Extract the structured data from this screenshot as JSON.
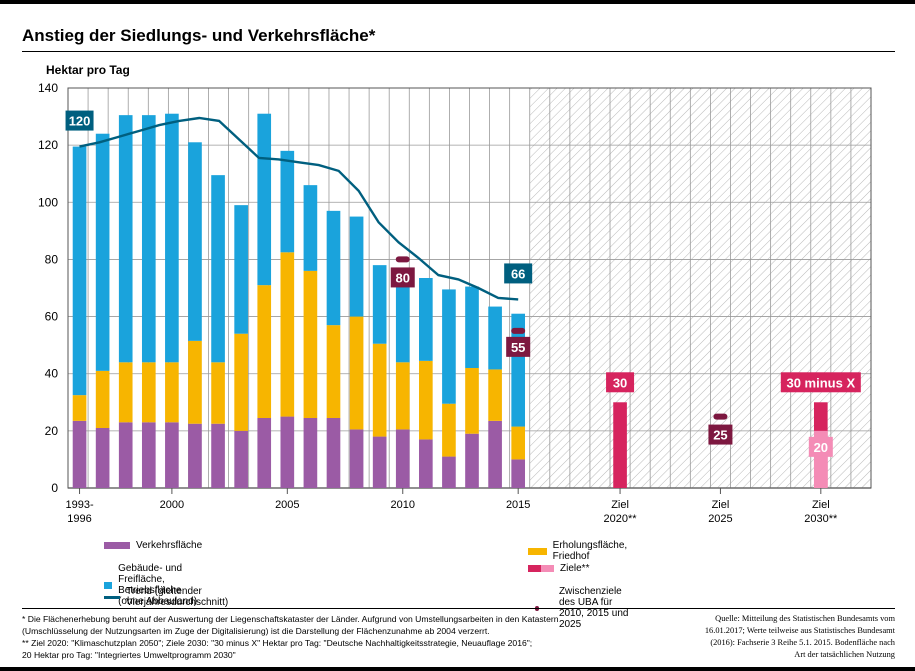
{
  "title": "Anstieg der Siedlungs- und Verkehrsfläche*",
  "colors": {
    "verkehr": "#9b5ba5",
    "erholung": "#f7b500",
    "gebaeude": "#1aa3dc",
    "trend": "#005f7f",
    "ziel_dark": "#d6245e",
    "ziel_light": "#f48cb6",
    "uba": "#7d1840"
  },
  "chart_data": {
    "type": "bar",
    "title": "Anstieg der Siedlungs- und Verkehrsfläche*",
    "ylabel": "Hektar pro Tag",
    "xlabel": "",
    "ylim": [
      0,
      140
    ],
    "yticks": [
      0,
      20,
      40,
      60,
      80,
      100,
      120,
      140
    ],
    "grid": true,
    "stacked": true,
    "years": [
      1993,
      1994,
      1995,
      1996,
      1997,
      1998,
      1999,
      2000,
      2001,
      2002,
      2003,
      2004,
      2005,
      2006,
      2007,
      2008,
      2009,
      2010,
      2011,
      2012,
      2013,
      2014,
      2015
    ],
    "x_tick_labels": [
      {
        "year": 1993,
        "line1": "1993-",
        "line2": "1996"
      },
      {
        "year": 2000,
        "line1": "2000",
        "line2": ""
      },
      {
        "year": 2005,
        "line1": "2005",
        "line2": ""
      },
      {
        "year": 2010,
        "line1": "2010",
        "line2": ""
      },
      {
        "year": 2015,
        "line1": "2015",
        "line2": ""
      },
      {
        "year": 2020,
        "line1": "Ziel",
        "line2": "2020**"
      },
      {
        "year": 2025,
        "line1": "Ziel",
        "line2": "2025"
      },
      {
        "year": 2030,
        "line1": "Ziel",
        "line2": "2030**"
      }
    ],
    "series": [
      {
        "name": "Verkehrsfläche",
        "values": [
          23.5,
          21,
          23,
          23,
          23,
          22.5,
          22.5,
          20,
          24.5,
          25,
          24.5,
          24.5,
          20.5,
          18,
          20.5,
          17,
          11,
          19,
          23.5,
          10
        ]
      },
      {
        "name": "Erholungsfläche, Friedhof",
        "values": [
          9,
          20,
          21,
          21,
          21,
          29,
          21.5,
          34,
          46.5,
          57.5,
          51.5,
          32.5,
          39.5,
          32.5,
          23.5,
          27.5,
          18.5,
          23,
          18,
          11.5
        ]
      },
      {
        "name": "Gebäude- und Freifläche, Betriebsfläche (ohne Abbauland)",
        "values": [
          87,
          83,
          86.5,
          86.5,
          87,
          69.5,
          65.5,
          45,
          60,
          35.5,
          30,
          40,
          35,
          27.5,
          30,
          29,
          40,
          28.5,
          22,
          39.5
        ]
      }
    ],
    "trend": {
      "name": "Trend (gleitender Vierjahresdurchschnitt)",
      "x": [
        1993,
        1994,
        1995,
        1996,
        1997,
        1998,
        1999,
        2000,
        2001,
        2002,
        2003,
        2004,
        2005,
        2006,
        2007,
        2008,
        2009,
        2010,
        2011,
        2012,
        2013,
        2014,
        2015
      ],
      "values": [
        119.5,
        121,
        123,
        125,
        127,
        128.5,
        129.5,
        128.5,
        122,
        115.5,
        115,
        114,
        113,
        111,
        104,
        93,
        86,
        80.5,
        74.5,
        73,
        70,
        66.5,
        66
      ],
      "labels": [
        {
          "year": 1993,
          "text": "120"
        },
        {
          "year": 2015,
          "text": "66"
        }
      ]
    },
    "ziele": {
      "name": "Ziele**",
      "items": [
        {
          "year": 2020,
          "value": 30,
          "label": "30"
        },
        {
          "year": 2030,
          "value_dark": 30,
          "value_light": 20,
          "label_dark": "30 minus X",
          "label_light": "20"
        }
      ]
    },
    "uba_zwischenziele": {
      "name": "Zwischenziele des UBA für 2010, 2015 und 2025",
      "items": [
        {
          "year": 2010,
          "value": 80,
          "label": "80"
        },
        {
          "year": 2015,
          "value": 55,
          "label": "55"
        },
        {
          "year": 2025,
          "value": 25,
          "label": "25"
        }
      ]
    }
  },
  "legend": {
    "verkehr": "Verkehrsfläche",
    "erholung": "Erholungsfläche, Friedhof",
    "gebaeude": "Gebäude- und Freifläche, Betriebsfläche (ohne Abbauland)",
    "ziele": "Ziele**",
    "trend": "Trend (gleitender Vierjahresdurchschnitt)",
    "uba": "Zwischenziele des UBA für 2010, 2015 und 2025"
  },
  "footnote": {
    "line1": "* Die Flächenerhebung beruht auf der Auswertung der Liegenschaftskataster der Länder. Aufgrund von Umstellungsarbeiten in den Katastern",
    "line2": "(Umschlüsselung der Nutzungsarten im Zuge der Digitalisierung) ist die Darstellung der Flächenzunahme ab 2004 verzerrt.",
    "line3": "** Ziel 2020: \"Klimaschutzplan 2050\"; Ziele 2030: \"30 minus X\" Hektar pro Tag: \"Deutsche Nachhaltigkeitsstrategie, Neuauflage 2016\";",
    "line4": "20 Hektar pro Tag: \"Integriertes Umweltprogramm 2030\""
  },
  "source": {
    "line1": "Quelle: Mitteilung des Statistischen Bundesamts vom",
    "line2": "16.01.2017; Werte teilweise aus Statistisches Bundesamt",
    "line3": "(2016): Fachserie 3 Reihe 5.1. 2015. Bodenfläche nach",
    "line4": "Art der tatsächlichen Nutzung"
  }
}
